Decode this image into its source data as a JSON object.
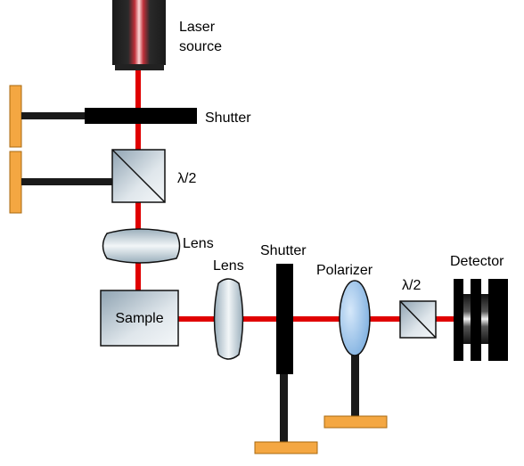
{
  "labels": {
    "laser_line1": "Laser",
    "laser_line2": "source",
    "shutter_top": "Shutter",
    "waveplate_top": "λ/2",
    "lens_top": "Lens",
    "sample": "Sample",
    "lens_right": "Lens",
    "shutter_right": "Shutter",
    "polarizer": "Polarizer",
    "waveplate_right": "λ/2",
    "detector": "Detector"
  },
  "colors": {
    "beam": "#e00000",
    "mount": "#f4a742",
    "mount_border": "#a86a10",
    "post": "#1a1a1a",
    "component_fill": "#c9d4dc",
    "polarizer_fill": "#9dc3ea"
  }
}
